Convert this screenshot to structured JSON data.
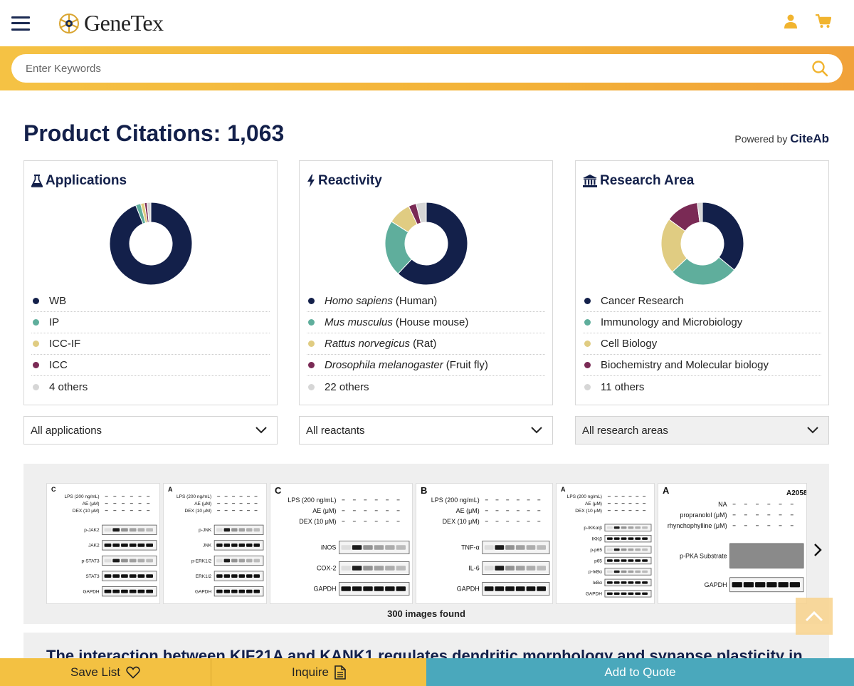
{
  "header": {
    "logo_text": "GeneTex",
    "icons": [
      "menu-icon",
      "user-icon",
      "cart-icon"
    ]
  },
  "search": {
    "placeholder": "Enter Keywords"
  },
  "page": {
    "title": "Product Citations: 1,063",
    "powered_by": "Powered by",
    "powered_brand": "CiteAb"
  },
  "cards": {
    "applications": {
      "title": "Applications",
      "legend": [
        {
          "label": "WB",
          "color": "#13204a"
        },
        {
          "label": "IP",
          "color": "#5fae9c"
        },
        {
          "label": "ICC-IF",
          "color": "#e0cc82"
        },
        {
          "label": "ICC",
          "color": "#7a2a55"
        },
        {
          "label": "4 others",
          "color": "#d6d6d6"
        }
      ],
      "select": "All applications"
    },
    "reactivity": {
      "title": "Reactivity",
      "legend": [
        {
          "italic": "Homo sapiens",
          "label": "(Human)",
          "color": "#13204a"
        },
        {
          "italic": "Mus musculus",
          "label": "(House mouse)",
          "color": "#5fae9c"
        },
        {
          "italic": "Rattus norvegicus",
          "label": "(Rat)",
          "color": "#e0cc82"
        },
        {
          "italic": "Drosophila melanogaster",
          "label": "(Fruit fly)",
          "color": "#7a2a55"
        },
        {
          "italic": "",
          "label": "22 others",
          "color": "#d6d6d6"
        }
      ],
      "select": "All reactants"
    },
    "research": {
      "title": "Research Area",
      "legend": [
        {
          "label": "Cancer Research",
          "color": "#13204a"
        },
        {
          "label": "Immunology and Microbiology",
          "color": "#5fae9c"
        },
        {
          "label": "Cell Biology",
          "color": "#e0cc82"
        },
        {
          "label": "Biochemistry and Molecular biology",
          "color": "#7a2a55"
        },
        {
          "label": "11 others",
          "color": "#d6d6d6"
        }
      ],
      "select": "All research areas"
    }
  },
  "donuts": {
    "applications": [
      94,
      2,
      1.5,
      1,
      1.5
    ],
    "reactivity": [
      62,
      22,
      9,
      3,
      4
    ],
    "research": [
      36,
      27,
      22,
      13,
      2
    ]
  },
  "gallery": {
    "count_text": "300 images found",
    "thumbs": [
      {
        "panel": "C",
        "conds": [
          "LPS (200 ng/mL)",
          "AE (μM)",
          "DEX (10 μM)"
        ],
        "bands": [
          "p-JAK2",
          "JAK2",
          "p-STAT3",
          "STAT3",
          "GAPDH"
        ]
      },
      {
        "panel": "A",
        "conds": [
          "LPS (200 ng/mL)",
          "AE (μM)",
          "DEX (10 μM)"
        ],
        "bands": [
          "p-JNK",
          "JNK",
          "p-ERK1/2",
          "ERK1/2",
          "GAPDH"
        ]
      },
      {
        "panel": "C",
        "conds": [
          "LPS (200 ng/mL)",
          "AE (μM)",
          "DEX (10 μM)"
        ],
        "bands": [
          "iNOS",
          "COX-2",
          "GAPDH"
        ]
      },
      {
        "panel": "B",
        "conds": [
          "LPS (200 ng/mL)",
          "AE (μM)",
          "DEX (10 μM)"
        ],
        "bands": [
          "TNF-α",
          "IL-6",
          "GAPDH"
        ]
      },
      {
        "panel": "A",
        "conds": [
          "LPS (200 ng/mL)",
          "AE (μM)",
          "DEX (10 μM)"
        ],
        "bands": [
          "p-IKKα/β",
          "IKKβ",
          "p-p65",
          "p65",
          "p-IκBα",
          "IκBα",
          "GAPDH"
        ]
      },
      {
        "panel": "A",
        "title": "A2058",
        "conds": [
          "NA",
          "propranolol (μM)",
          "rhynchophylline (μM)"
        ],
        "bands": [
          "p-PKA Substrate",
          "GAPDH"
        ]
      }
    ]
  },
  "article": {
    "title": "The interaction between KIF21A and KANK1 regulates dendritic morphology and synapse plasticity in"
  },
  "bottom": {
    "save": "Save List",
    "inquire": "Inquire",
    "quote": "Add to Quote"
  }
}
